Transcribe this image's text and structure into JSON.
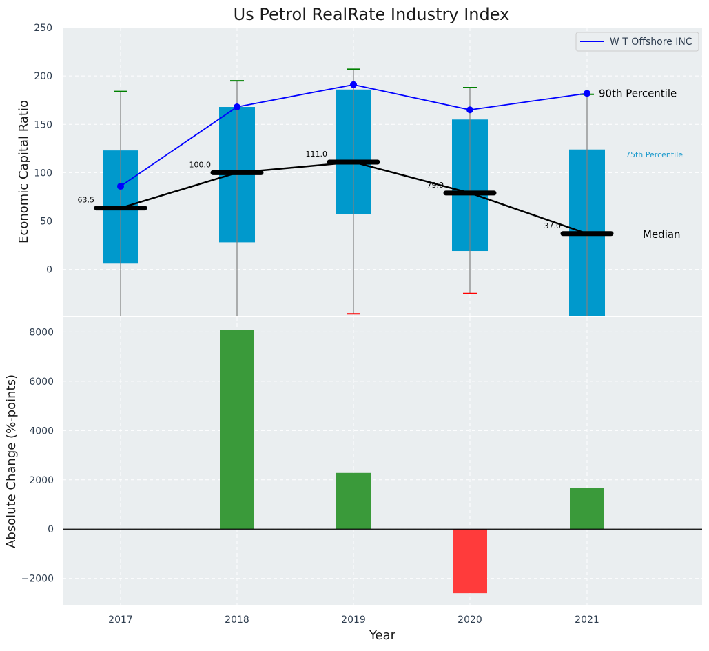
{
  "chart_data": [
    {
      "type": "box-range-line",
      "title": "Us Petrol RealRate Industry Index",
      "xlabel": "",
      "ylabel": "Economic Capital Ratio",
      "categories": [
        "2017",
        "2018",
        "2019",
        "2020",
        "2021"
      ],
      "ylim": [
        -48,
        250
      ],
      "yticks": [
        0,
        50,
        100,
        150,
        200,
        250
      ],
      "grid": true,
      "legend": {
        "position": "top-right",
        "entries": [
          "W T Offshore INC"
        ]
      },
      "boxes": [
        {
          "year": "2017",
          "q1": 6,
          "q3": 123
        },
        {
          "year": "2018",
          "q1": 28,
          "q3": 168
        },
        {
          "year": "2019",
          "q1": 57,
          "q3": 186
        },
        {
          "year": "2020",
          "q1": 19,
          "q3": 155
        },
        {
          "year": "2021",
          "q1": -48,
          "q3": 124
        }
      ],
      "whiskers": [
        {
          "year": "2017",
          "low": -48,
          "high": 184,
          "high_color": "#008000",
          "low_color": ""
        },
        {
          "year": "2018",
          "low": -48,
          "high": 195,
          "high_color": "#008000",
          "low_color": ""
        },
        {
          "year": "2019",
          "low": -46,
          "high": 207,
          "high_color": "#008000",
          "low_color": "#ff0000"
        },
        {
          "year": "2020",
          "low": -25,
          "high": 188,
          "high_color": "#008000",
          "low_color": "#ff0000"
        },
        {
          "year": "2021",
          "low": -48,
          "high": 181,
          "high_color": "#008000",
          "low_color": ""
        }
      ],
      "series": [
        {
          "name": "W T Offshore INC",
          "color": "#0000ff",
          "values": [
            86,
            168,
            191,
            165,
            182
          ]
        },
        {
          "name": "Median",
          "color": "#000000",
          "values": [
            63.5,
            100.0,
            111.0,
            79.0,
            37.0
          ]
        }
      ],
      "median_labels": [
        "63.5",
        "100.0",
        "111.0",
        "79.0",
        "37.0"
      ],
      "annotations": {
        "p90": "90th Percentile",
        "p75": "75th Percentile",
        "median": "Median"
      },
      "colors": {
        "box": "#0099cc",
        "background": "#eaeef0",
        "whisker": "#808080"
      }
    },
    {
      "type": "bar",
      "xlabel": "Year",
      "ylabel": "Absolute Change (%-points)",
      "categories": [
        "2017",
        "2018",
        "2019",
        "2020",
        "2021"
      ],
      "values": [
        0,
        8080,
        2280,
        -2600,
        1670
      ],
      "ylim": [
        -3100,
        8600
      ],
      "yticks": [
        -2000,
        0,
        2000,
        4000,
        6000,
        8000
      ],
      "ytick_labels": [
        "−2000",
        "0",
        "2000",
        "4000",
        "6000",
        "8000"
      ],
      "grid": true,
      "colors": {
        "positive": "#3a9a3a",
        "negative": "#ff3b3b",
        "background": "#eaeef0"
      }
    }
  ]
}
